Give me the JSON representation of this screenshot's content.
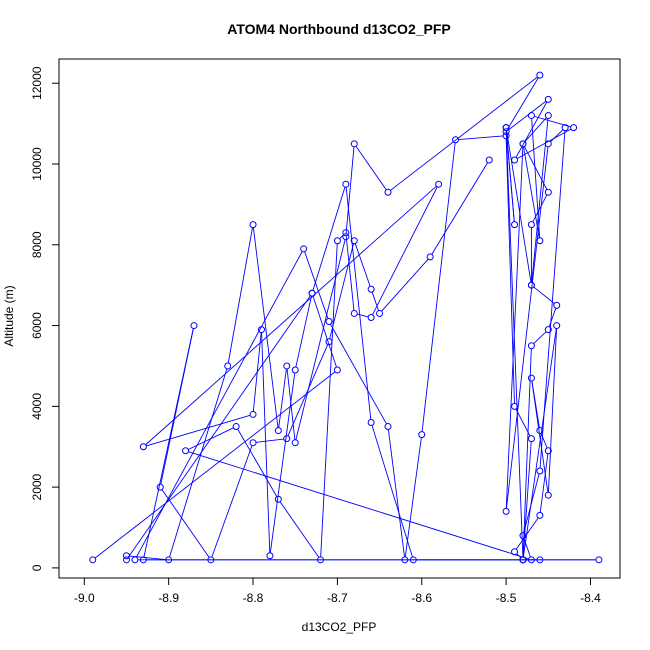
{
  "chart_data": {
    "type": "scatter",
    "title": "ATOM4 Northbound d13CO2_PFP",
    "xlabel": "d13CO2_PFP",
    "ylabel": "Altitude (m)",
    "xlim": [
      -9.03,
      -8.365
    ],
    "ylim": [
      -250,
      12600
    ],
    "x_ticks": [
      -9.0,
      -8.9,
      -8.8,
      -8.7,
      -8.6,
      -8.5,
      -8.4
    ],
    "x_tick_labels": [
      "-9.0",
      "-8.9",
      "-8.8",
      "-8.7",
      "-8.6",
      "-8.5",
      "-8.4"
    ],
    "y_ticks": [
      0,
      2000,
      4000,
      6000,
      8000,
      10000,
      12000
    ],
    "y_tick_labels": [
      "0",
      "2000",
      "4000",
      "6000",
      "8000",
      "10000",
      "12000"
    ],
    "grid": false,
    "legend": "none",
    "series_color": "#0000ff",
    "marker": "open-circle",
    "connected": true,
    "x": [
      -8.99,
      -8.7,
      -8.73,
      -8.95,
      -8.95,
      -8.9,
      -8.83,
      -8.8,
      -8.77,
      -8.76,
      -8.75,
      -8.69,
      -8.68,
      -8.64,
      -8.46,
      -8.5,
      -8.45,
      -8.49,
      -8.42,
      -8.47,
      -8.46,
      -8.48,
      -8.45,
      -8.47,
      -8.47,
      -8.44,
      -8.45,
      -8.47,
      -8.48,
      -8.49,
      -8.46,
      -8.45,
      -8.46,
      -8.47,
      -8.45,
      -8.44,
      -8.48,
      -8.46,
      -8.94,
      -8.74,
      -8.71,
      -8.64,
      -8.62,
      -8.6,
      -8.56,
      -8.5,
      -8.49,
      -8.47,
      -8.48,
      -8.5,
      -8.49,
      -8.5,
      -8.47,
      -8.45,
      -8.48,
      -8.5,
      -8.45,
      -8.43,
      -8.46,
      -8.48,
      -8.47,
      -8.88,
      -8.82,
      -8.77,
      -8.72,
      -8.7,
      -8.69,
      -8.68,
      -8.66,
      -8.58,
      -8.93,
      -8.8,
      -8.79,
      -8.78,
      -8.75,
      -8.73,
      -8.69,
      -8.66,
      -8.61,
      -8.39,
      -8.93,
      -8.87,
      -8.91,
      -8.85,
      -8.8,
      -8.76,
      -8.71,
      -8.68,
      -8.66,
      -8.65,
      -8.59,
      -8.52
    ],
    "y": [
      200,
      4900,
      6800,
      200,
      300,
      200,
      5000,
      8500,
      3400,
      5000,
      3100,
      8200,
      10500,
      9300,
      12200,
      10800,
      11600,
      10100,
      10900,
      11200,
      8100,
      10500,
      9300,
      8500,
      7000,
      6500,
      5900,
      5500,
      200,
      400,
      1300,
      2900,
      3400,
      4700,
      1800,
      6000,
      200,
      200,
      200,
      7900,
      6100,
      3500,
      200,
      3300,
      10600,
      10700,
      4000,
      3200,
      200,
      10900,
      8500,
      10900,
      7000,
      11200,
      10500,
      1400,
      10500,
      10900,
      2400,
      800,
      200,
      2900,
      3500,
      1700,
      200,
      8100,
      8300,
      6300,
      6200,
      9500,
      3000,
      3800,
      5900,
      300,
      4900,
      6800,
      9500,
      3600,
      200,
      200,
      200,
      6000,
      2000,
      200,
      3100,
      3200,
      5600,
      8100,
      6900,
      6300,
      7700,
      10100
    ]
  }
}
